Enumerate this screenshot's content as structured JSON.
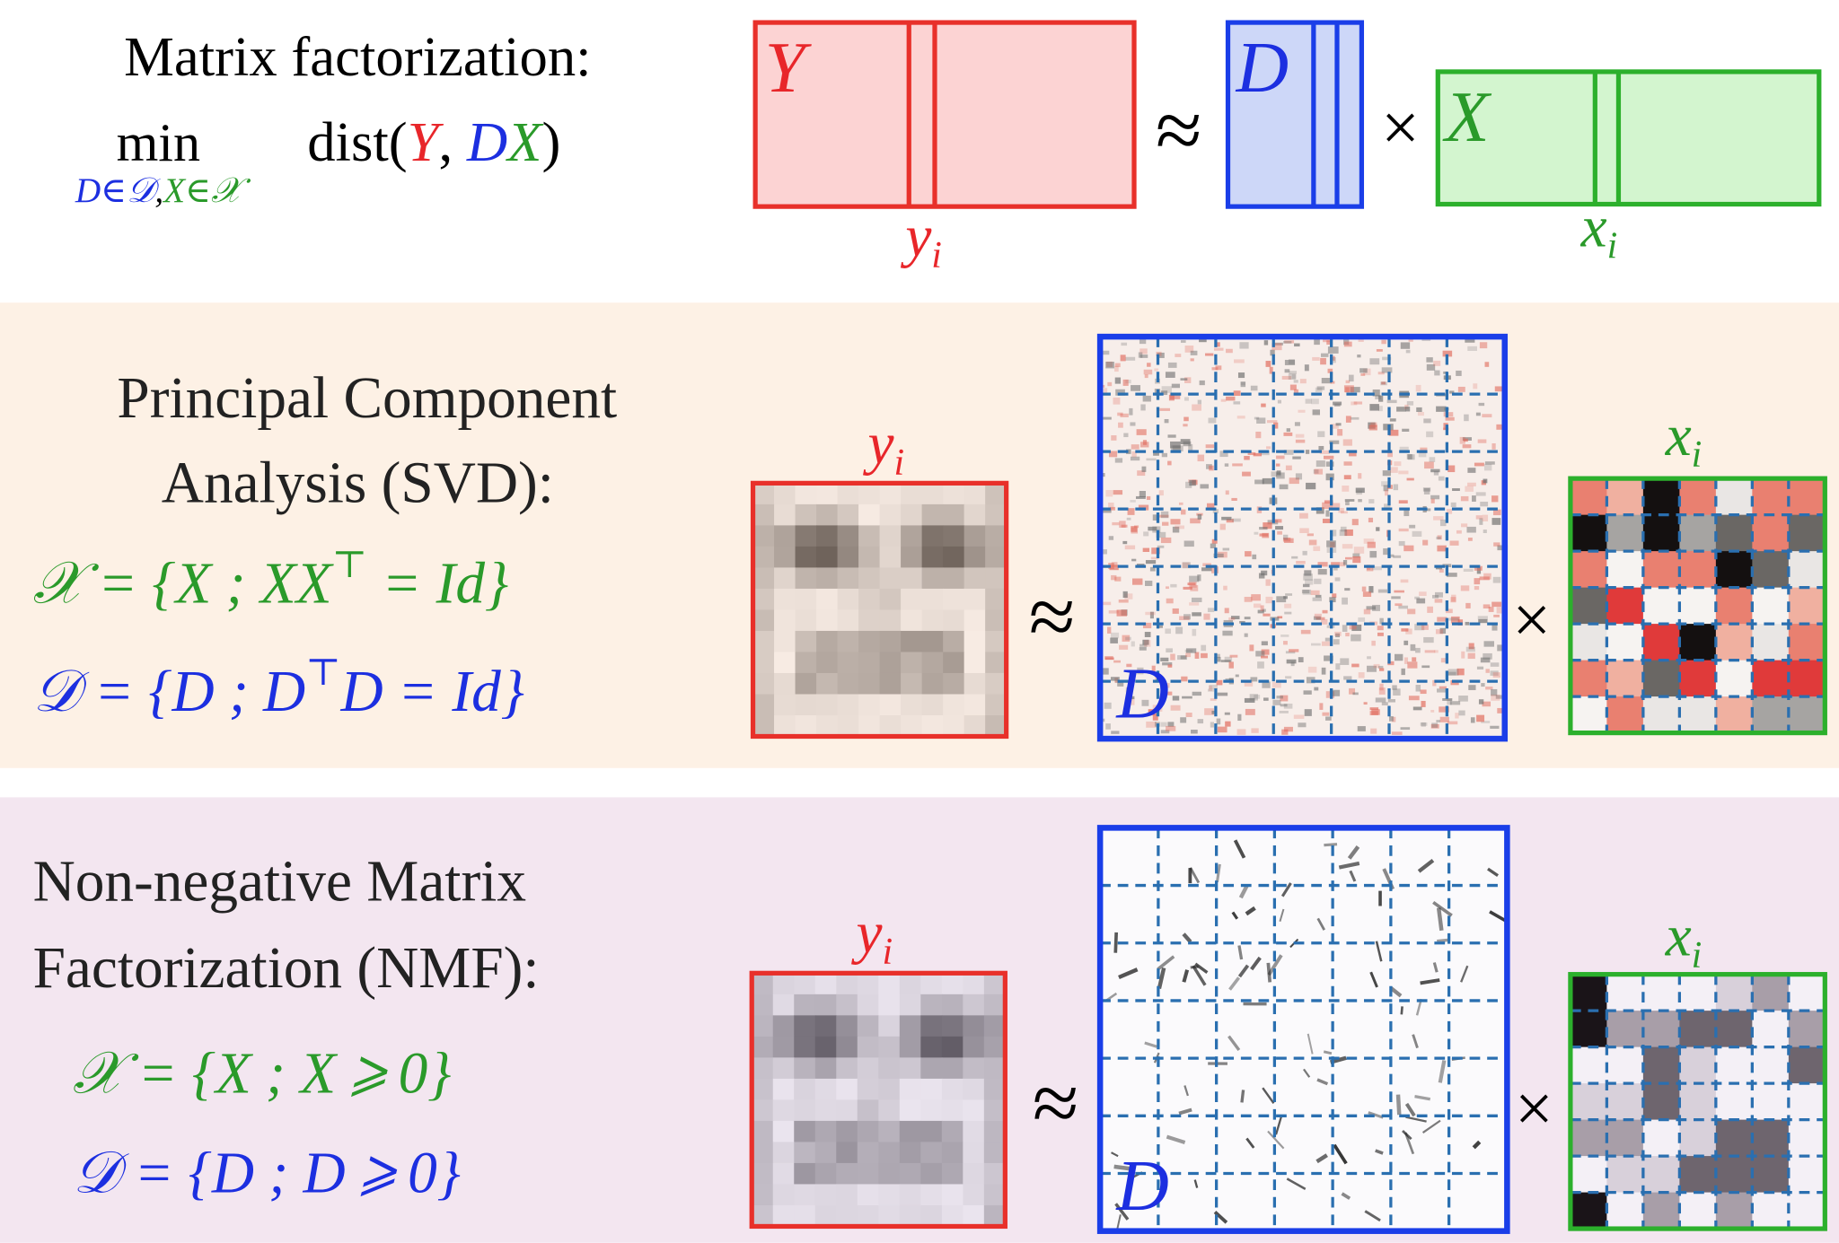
{
  "matrix_factorization": {
    "title": "Matrix factorization:",
    "min": "min",
    "subscript": [
      "D∈𝒟",
      ",",
      "X∈𝒳"
    ],
    "objective": [
      "dist(",
      "Y",
      ", ",
      "D",
      "X",
      ")"
    ],
    "Y": "Y",
    "D": "D",
    "X": "X",
    "approx": "≈",
    "times": "×",
    "y_i": [
      "y",
      "i"
    ],
    "x_i": [
      "x",
      "i"
    ]
  },
  "pca": {
    "title": [
      "Principal Component",
      "Analysis (SVD):"
    ],
    "constraint_x": [
      "𝒳 = {X ; XX",
      "⊤",
      " = Id}"
    ],
    "constraint_d": [
      "𝒟 = {D ; D",
      "⊤",
      "D = Id}"
    ],
    "y_i": [
      "y",
      "i"
    ],
    "x_i": [
      "x",
      "i"
    ],
    "D": "D",
    "approx": "≈",
    "times": "×"
  },
  "nmf": {
    "title": [
      "Non-negative Matrix",
      "Factorization (NMF):"
    ],
    "constraint_x": "𝒳 = {X ; X ⩾ 0}",
    "constraint_d": "𝒟 = {D ; D ⩾ 0}",
    "y_i": [
      "y",
      "i"
    ],
    "x_i": [
      "x",
      "i"
    ],
    "D": "D",
    "approx": "≈",
    "times": "×"
  }
}
